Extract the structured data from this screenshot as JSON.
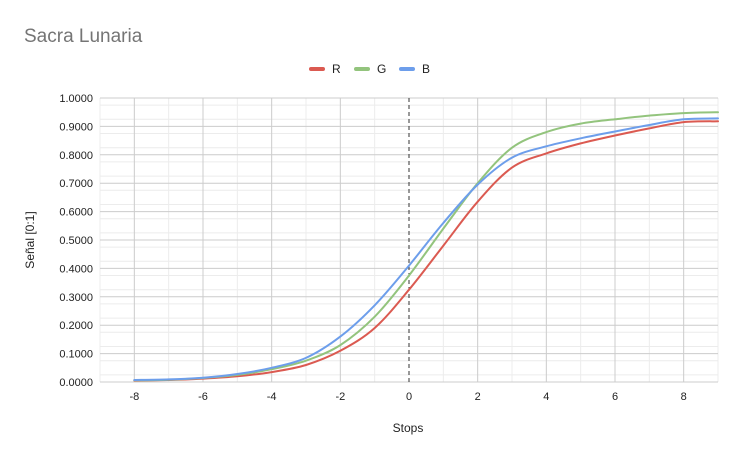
{
  "chart_data": {
    "type": "line",
    "title": "Sacra Lunaria",
    "xlabel": "Stops",
    "ylabel": "Señal [0:1]",
    "xlim": [
      -9,
      9
    ],
    "ylim": [
      0,
      1
    ],
    "x_ticks": [
      "-8",
      "-6",
      "-4",
      "-2",
      "0",
      "2",
      "4",
      "6",
      "8"
    ],
    "y_ticks": [
      "0.0000",
      "0.1000",
      "0.2000",
      "0.3000",
      "0.4000",
      "0.5000",
      "0.6000",
      "0.7000",
      "0.8000",
      "0.9000",
      "1.0000"
    ],
    "grid": true,
    "legend_position": "top",
    "reference_line_x": 0,
    "series": [
      {
        "name": "R",
        "color": "#db5a51",
        "x": [
          -8,
          -7,
          -6,
          -5,
          -4,
          -3,
          -2,
          -1,
          0,
          1,
          2,
          3,
          4,
          5,
          6,
          7,
          8,
          9
        ],
        "values": [
          0.005,
          0.007,
          0.012,
          0.02,
          0.035,
          0.06,
          0.11,
          0.19,
          0.325,
          0.48,
          0.635,
          0.755,
          0.805,
          0.84,
          0.868,
          0.893,
          0.915,
          0.918
        ]
      },
      {
        "name": "G",
        "color": "#93c47d",
        "x": [
          -8,
          -7,
          -6,
          -5,
          -4,
          -3,
          -2,
          -1,
          0,
          1,
          2,
          3,
          4,
          5,
          6,
          7,
          8,
          9
        ],
        "values": [
          0.006,
          0.008,
          0.014,
          0.025,
          0.045,
          0.075,
          0.13,
          0.23,
          0.375,
          0.54,
          0.7,
          0.825,
          0.88,
          0.91,
          0.925,
          0.938,
          0.947,
          0.95
        ]
      },
      {
        "name": "B",
        "color": "#6d9eeb",
        "x": [
          -8,
          -7,
          -6,
          -5,
          -4,
          -3,
          -2,
          -1,
          0,
          1,
          2,
          3,
          4,
          5,
          6,
          7,
          8,
          9
        ],
        "values": [
          0.007,
          0.009,
          0.015,
          0.028,
          0.05,
          0.085,
          0.16,
          0.27,
          0.41,
          0.56,
          0.695,
          0.79,
          0.83,
          0.858,
          0.882,
          0.905,
          0.925,
          0.928
        ]
      }
    ]
  }
}
